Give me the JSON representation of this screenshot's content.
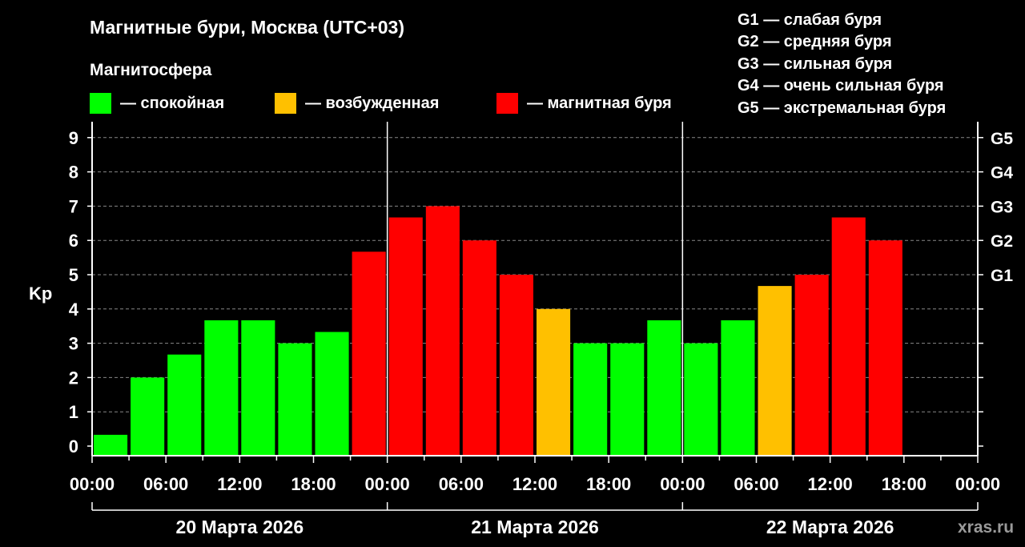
{
  "chart_data": {
    "type": "bar",
    "title": "Магнитные бури, Москва (UTC+03)",
    "legend_title": "Магнитосфера",
    "legend_placement": "top-left",
    "legend": [
      {
        "label": "— спокойная",
        "color": "#00ff00",
        "status": "calm"
      },
      {
        "label": "— возбужденная",
        "color": "#ffc000",
        "status": "excited"
      },
      {
        "label": "— магнитная буря",
        "color": "#ff0000",
        "status": "storm"
      }
    ],
    "g_scale": [
      "G1 — слабая буря",
      "G2 — средняя буря",
      "G3 — сильная буря",
      "G4 — очень сильная буря",
      "G5 — экстремальная буря"
    ],
    "ylabel": "Kp",
    "ylim": [
      0,
      9
    ],
    "y_ticks": [
      0,
      1,
      2,
      3,
      4,
      5,
      6,
      7,
      8,
      9
    ],
    "right_axis_labels": [
      {
        "kp": 5,
        "label": "G1"
      },
      {
        "kp": 6,
        "label": "G2"
      },
      {
        "kp": 7,
        "label": "G3"
      },
      {
        "kp": 8,
        "label": "G4"
      },
      {
        "kp": 9,
        "label": "G5"
      }
    ],
    "grid": "horizontal dashed",
    "x_tick_labels": [
      "00:00",
      "06:00",
      "12:00",
      "18:00",
      "00:00",
      "06:00",
      "12:00",
      "18:00",
      "00:00",
      "06:00",
      "12:00",
      "18:00",
      "00:00"
    ],
    "days": [
      "20 Марта 2026",
      "21 Марта 2026",
      "22 Марта 2026"
    ],
    "interval_hours": 3,
    "series": [
      {
        "values": [
          0.33,
          2,
          2.67,
          3.67,
          3.67,
          3,
          3.33,
          5.67,
          6.67,
          7,
          6,
          5,
          4,
          3,
          3,
          3.67,
          3,
          3.67,
          4.67,
          5,
          6.67,
          6
        ],
        "status": [
          "calm",
          "calm",
          "calm",
          "calm",
          "calm",
          "calm",
          "calm",
          "storm",
          "storm",
          "storm",
          "storm",
          "storm",
          "excited",
          "calm",
          "calm",
          "calm",
          "calm",
          "calm",
          "excited",
          "storm",
          "storm",
          "storm"
        ]
      }
    ],
    "watermark": "xras.ru"
  },
  "colors": {
    "background": "#000000",
    "axis": "#ffffff",
    "grid": "#888888",
    "calm": "#00ff00",
    "excited": "#ffc000",
    "storm": "#ff0000",
    "watermark": "#9a9a9a"
  }
}
